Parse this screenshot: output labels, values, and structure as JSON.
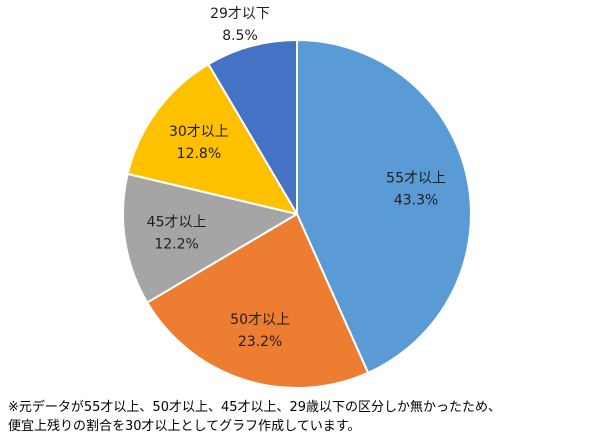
{
  "chart_data": {
    "type": "pie",
    "start_angle_deg": 0,
    "direction": "clockwise",
    "slices": [
      {
        "name": "55才以上",
        "value": 43.3,
        "value_label": "43.3%",
        "color": "#5B9BD5",
        "label_color": "#1F1F1F"
      },
      {
        "name": "50才以上",
        "value": 23.2,
        "value_label": "23.2%",
        "color": "#ED7D31",
        "label_color": "#1F1F1F"
      },
      {
        "name": "45才以上",
        "value": 12.2,
        "value_label": "12.2%",
        "color": "#A5A5A5",
        "label_color": "#1F1F1F"
      },
      {
        "name": "30才以上",
        "value": 12.8,
        "value_label": "12.8%",
        "color": "#FFC000",
        "label_color": "#1F1F1F"
      },
      {
        "name": "29才以下",
        "value": 8.5,
        "value_label": "8.5%",
        "color": "#4472C4",
        "label_color": "#1F1F1F"
      }
    ],
    "slice_border_color": "#FFFFFF"
  },
  "footnote": {
    "line1": "※元データが55才以上、50才以上、45才以上、29歳以下の区分しか無かったため、",
    "line2": "便宜上残りの割合を30才以上としてグラフ作成しています。"
  }
}
